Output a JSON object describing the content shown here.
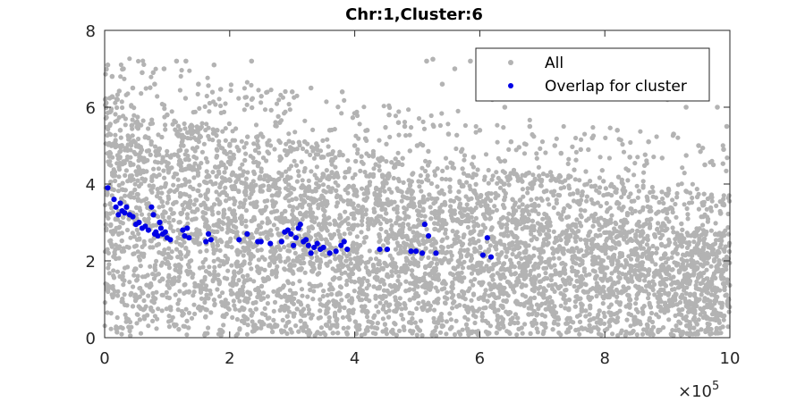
{
  "chart_data": {
    "type": "scatter",
    "title": "Chr:1,Cluster:6",
    "xlim": [
      0,
      1000000
    ],
    "ylim": [
      0,
      8
    ],
    "x_scale_exponent_label": "×10",
    "x_scale_exponent": "5",
    "x_tick_labels": [
      "0",
      "2",
      "4",
      "6",
      "8",
      "10"
    ],
    "x_tick_values": [
      0,
      200000,
      400000,
      600000,
      800000,
      1000000
    ],
    "y_tick_labels": [
      "0",
      "2",
      "4",
      "6",
      "8"
    ],
    "y_tick_values": [
      0,
      2,
      4,
      6,
      8
    ],
    "grid": false,
    "legend_position": "top-right",
    "series": [
      {
        "name": "All",
        "color": "#b3b3b3",
        "description_points": "dense background cloud",
        "points": [
          [
            5000,
            7.1
          ],
          [
            12000,
            6.8
          ],
          [
            20000,
            6.2
          ],
          [
            30000,
            7.0
          ],
          [
            45000,
            6.5
          ],
          [
            60000,
            6.9
          ],
          [
            80000,
            6.6
          ],
          [
            95000,
            7.0
          ],
          [
            115000,
            7.2
          ],
          [
            130000,
            7.2
          ],
          [
            150000,
            6.6
          ],
          [
            175000,
            7.1
          ],
          [
            235000,
            7.2
          ],
          [
            300000,
            6.4
          ],
          [
            330000,
            6.5
          ],
          [
            380000,
            6.4
          ],
          [
            455000,
            5.8
          ],
          [
            470000,
            5.6
          ],
          [
            515000,
            7.2
          ],
          [
            525000,
            7.25
          ],
          [
            540000,
            6.6
          ],
          [
            560000,
            7.0
          ],
          [
            585000,
            7.2
          ],
          [
            620000,
            6.2
          ],
          [
            640000,
            6.0
          ],
          [
            700000,
            6.6
          ],
          [
            760000,
            6.3
          ],
          [
            855000,
            6.5
          ],
          [
            900000,
            6.2
          ],
          [
            930000,
            6.0
          ],
          [
            980000,
            6.0
          ],
          [
            995000,
            5.5
          ],
          [
            10000,
            5.9
          ],
          [
            25000,
            5.4
          ],
          [
            50000,
            5.6
          ],
          [
            70000,
            5.2
          ],
          [
            100000,
            5.8
          ],
          [
            140000,
            5.5
          ],
          [
            180000,
            5.4
          ],
          [
            200000,
            5.0
          ],
          [
            250000,
            5.3
          ],
          [
            280000,
            5.6
          ],
          [
            320000,
            5.1
          ],
          [
            360000,
            5.4
          ],
          [
            400000,
            5.0
          ],
          [
            420000,
            5.4
          ],
          [
            480000,
            5.5
          ],
          [
            500000,
            5.0
          ],
          [
            550000,
            5.3
          ],
          [
            600000,
            5.4
          ],
          [
            650000,
            5.1
          ],
          [
            680000,
            5.5
          ],
          [
            720000,
            5.0
          ],
          [
            780000,
            5.2
          ],
          [
            820000,
            5.4
          ],
          [
            870000,
            5.1
          ],
          [
            910000,
            5.3
          ],
          [
            950000,
            5.0
          ],
          [
            990000,
            4.9
          ],
          [
            640000,
            4.6
          ],
          [
            730000,
            4.8
          ],
          [
            840000,
            4.7
          ],
          [
            960000,
            4.5
          ],
          [
            590000,
            4.7
          ],
          [
            440000,
            4.6
          ],
          [
            350000,
            4.7
          ]
        ]
      },
      {
        "name": "Overlap for cluster",
        "color": "#0000e6",
        "points": [
          [
            5000,
            3.9
          ],
          [
            15000,
            3.6
          ],
          [
            18000,
            3.4
          ],
          [
            22000,
            3.2
          ],
          [
            25000,
            3.5
          ],
          [
            28000,
            3.3
          ],
          [
            32000,
            3.25
          ],
          [
            35000,
            3.4
          ],
          [
            40000,
            3.2
          ],
          [
            45000,
            3.15
          ],
          [
            50000,
            2.95
          ],
          [
            55000,
            3.0
          ],
          [
            60000,
            2.85
          ],
          [
            65000,
            2.9
          ],
          [
            70000,
            2.8
          ],
          [
            75000,
            3.4
          ],
          [
            78000,
            3.2
          ],
          [
            80000,
            2.7
          ],
          [
            82000,
            2.75
          ],
          [
            85000,
            2.65
          ],
          [
            88000,
            3.0
          ],
          [
            90000,
            2.85
          ],
          [
            93000,
            2.7
          ],
          [
            97000,
            2.75
          ],
          [
            100000,
            2.6
          ],
          [
            105000,
            2.55
          ],
          [
            125000,
            2.8
          ],
          [
            128000,
            2.65
          ],
          [
            132000,
            2.85
          ],
          [
            135000,
            2.6
          ],
          [
            162000,
            2.5
          ],
          [
            166000,
            2.7
          ],
          [
            170000,
            2.55
          ],
          [
            215000,
            2.55
          ],
          [
            228000,
            2.7
          ],
          [
            245000,
            2.5
          ],
          [
            250000,
            2.5
          ],
          [
            265000,
            2.45
          ],
          [
            283000,
            2.5
          ],
          [
            288000,
            2.75
          ],
          [
            293000,
            2.8
          ],
          [
            298000,
            2.7
          ],
          [
            302000,
            2.4
          ],
          [
            306000,
            2.6
          ],
          [
            310000,
            2.85
          ],
          [
            313000,
            2.95
          ],
          [
            318000,
            2.5
          ],
          [
            322000,
            2.55
          ],
          [
            326000,
            2.4
          ],
          [
            330000,
            2.2
          ],
          [
            335000,
            2.35
          ],
          [
            340000,
            2.45
          ],
          [
            345000,
            2.3
          ],
          [
            350000,
            2.35
          ],
          [
            360000,
            2.2
          ],
          [
            370000,
            2.25
          ],
          [
            378000,
            2.4
          ],
          [
            383000,
            2.5
          ],
          [
            388000,
            2.3
          ],
          [
            440000,
            2.3
          ],
          [
            452000,
            2.3
          ],
          [
            490000,
            2.25
          ],
          [
            498000,
            2.25
          ],
          [
            508000,
            2.2
          ],
          [
            512000,
            2.95
          ],
          [
            518000,
            2.65
          ],
          [
            530000,
            2.2
          ],
          [
            605000,
            2.15
          ],
          [
            612000,
            2.6
          ],
          [
            618000,
            2.1
          ]
        ]
      }
    ]
  }
}
